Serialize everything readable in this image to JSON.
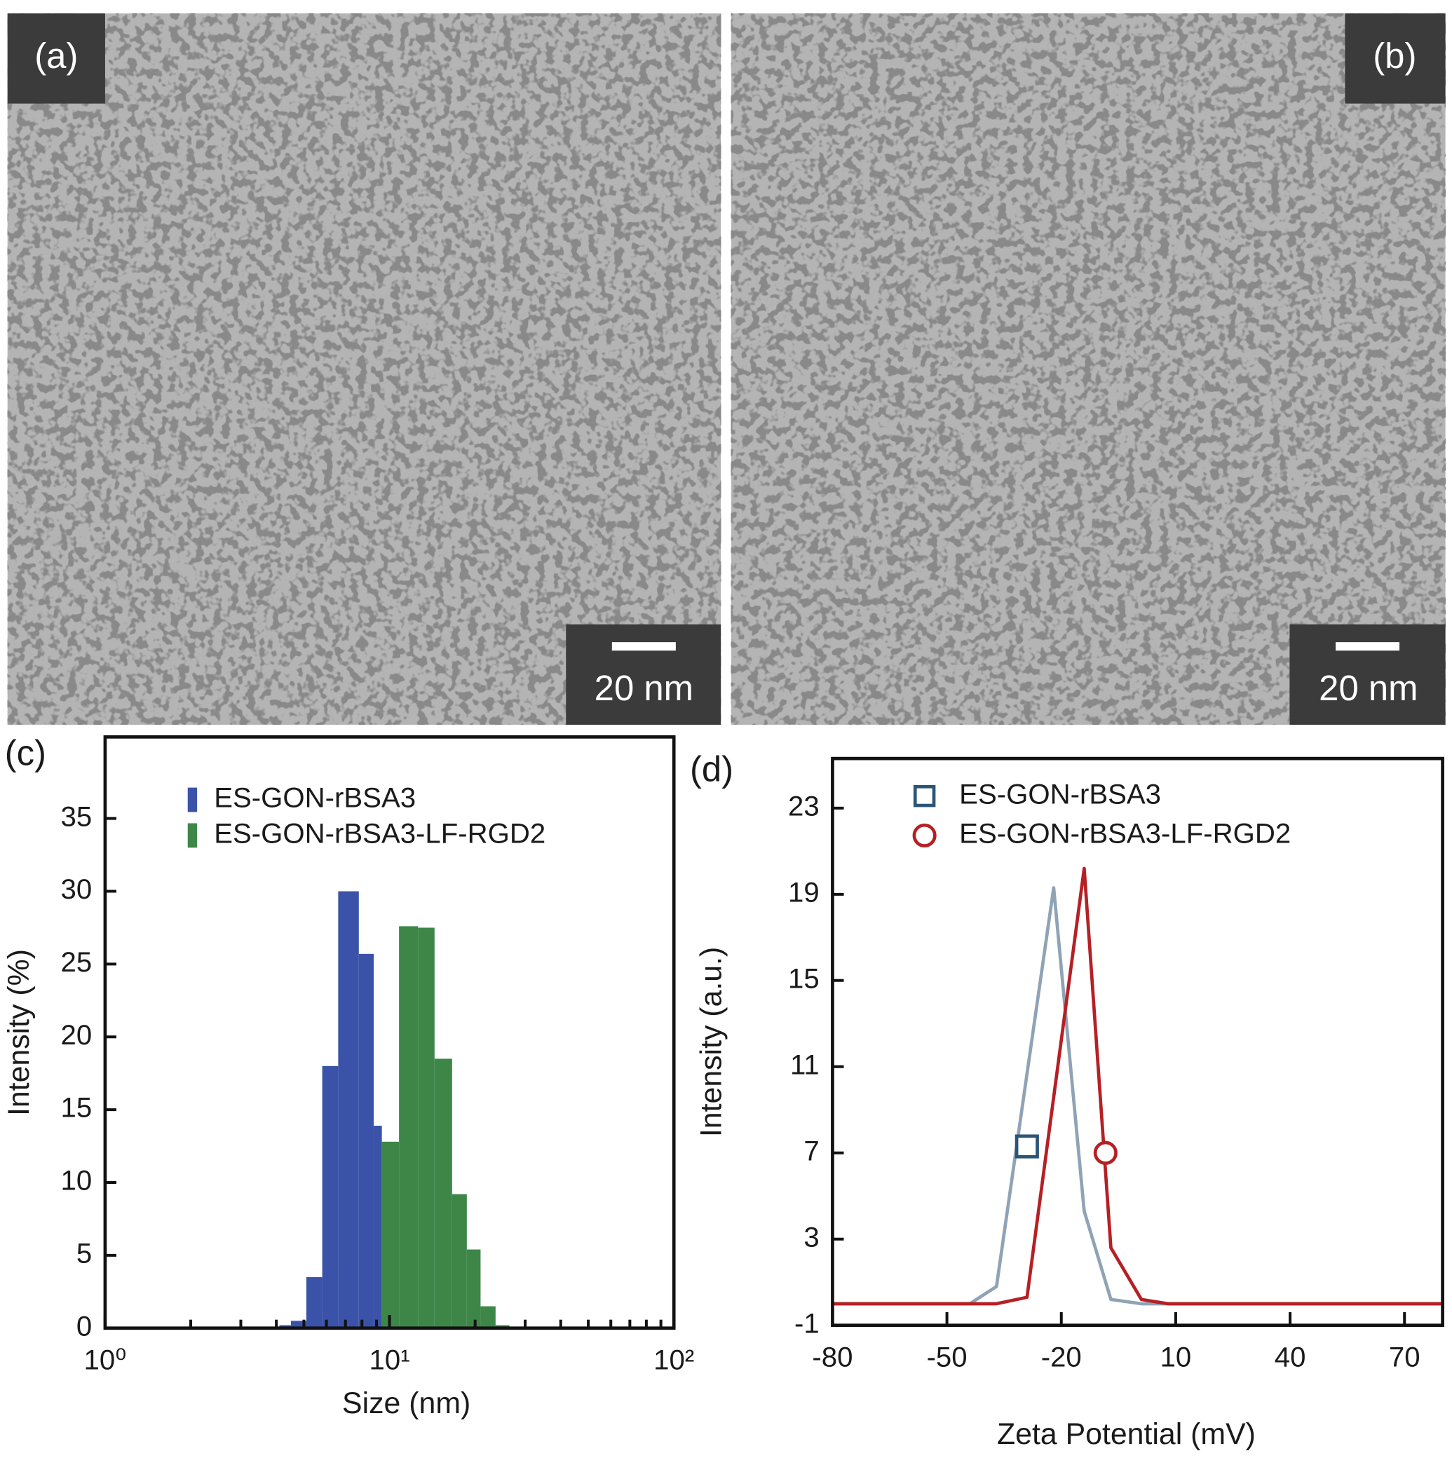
{
  "panels": [
    {
      "label": "(a)",
      "scale_bar": "20 nm"
    },
    {
      "label": "(b)",
      "scale_bar": "20 nm"
    }
  ],
  "chart_data": [
    {
      "type": "histogram",
      "panel_label": "(c)",
      "x_label": "Size (nm)",
      "y_label": "Intensity (%)",
      "log_x": true,
      "xlim": [
        1,
        100
      ],
      "xticks": [
        {
          "value": 1,
          "label": "10⁰"
        },
        {
          "value": 10,
          "label": "10¹"
        },
        {
          "value": 100,
          "label": "10²"
        }
      ],
      "xminor_ticks": [
        2,
        3,
        4,
        5,
        6,
        7,
        8,
        9,
        20,
        30,
        40,
        50,
        60,
        70,
        80,
        90
      ],
      "ylim": [
        0,
        40.6
      ],
      "yticks": [
        0,
        5,
        10,
        15,
        20,
        25,
        30,
        35
      ],
      "legend": "upper left",
      "series": [
        {
          "name": "ES-GON-rBSA3",
          "color": "#3a53a8",
          "bins": [
            4.1,
            4.5,
            5.1,
            5.8,
            6.6,
            7.8,
            8.8,
            9.4
          ],
          "values": [
            0.2,
            0.5,
            3.5,
            18,
            30,
            25.7,
            13.9
          ]
        },
        {
          "name": "ES-GON-rBSA3-LF-RGD2",
          "color": "#3d8648",
          "bins": [
            9.4,
            10.8,
            12.6,
            14.4,
            16.6,
            18.7,
            20.9,
            23.6,
            26.4
          ],
          "values": [
            12.8,
            27.6,
            27.5,
            18.5,
            9.2,
            5.4,
            1.5,
            0.2
          ]
        }
      ]
    },
    {
      "type": "line",
      "panel_label": "(d)",
      "x_label": "Zeta Potential (mV)",
      "y_label": "Intensity (a.u.)",
      "xlim": [
        -80,
        80
      ],
      "xticks": [
        -80,
        -50,
        -20,
        10,
        40,
        70
      ],
      "ylim": [
        -1,
        25.3
      ],
      "yticks": [
        -1,
        3,
        7,
        11,
        15,
        19,
        23
      ],
      "legend": "upper left",
      "series": [
        {
          "name": "ES-GON-rBSA3",
          "color": "#8fa3b5",
          "marker": "square",
          "marker_color": "#2a5577",
          "marker_x": -29,
          "marker_y": 7.3,
          "x": [
            -80,
            -44,
            -37,
            -22,
            -14,
            -7,
            1,
            80
          ],
          "values": [
            0,
            0,
            0.8,
            19.3,
            4.3,
            0.2,
            0,
            0
          ]
        },
        {
          "name": "ES-GON-rBSA3-LF-RGD2",
          "color": "#b52025",
          "marker": "circle",
          "marker_color": "#b52025",
          "marker_x": -8.4,
          "marker_y": 7,
          "x": [
            -80,
            -37,
            -29,
            -14,
            -7,
            1,
            8,
            80
          ],
          "values": [
            0,
            0,
            0.3,
            20.2,
            2.6,
            0.2,
            0,
            0
          ]
        }
      ]
    }
  ]
}
